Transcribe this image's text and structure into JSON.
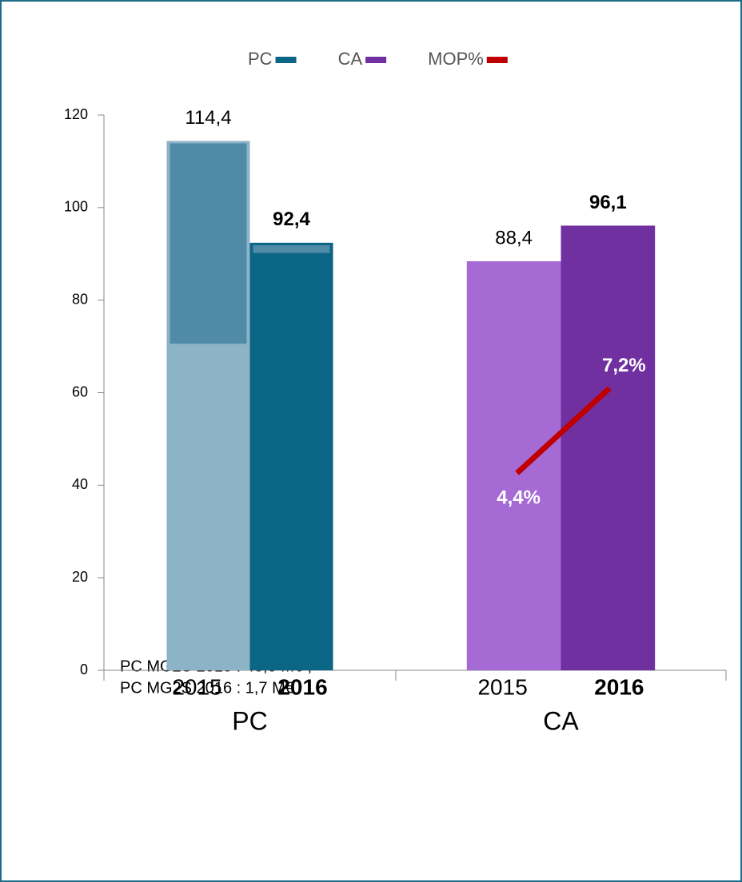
{
  "chart_data": {
    "type": "bar",
    "groups": [
      "PC",
      "CA"
    ],
    "categories": [
      "2015",
      "2016"
    ],
    "series": [
      {
        "name": "PC",
        "color": "#0b6585",
        "colors": [
          "#8cb3c6",
          "#0b6585"
        ],
        "values": [
          114.4,
          92.4
        ],
        "value_labels": [
          "114,4",
          "92,4"
        ],
        "overlay_values": [
          43.3,
          1.7
        ],
        "overlay_color": "#4f8ba6"
      },
      {
        "name": "CA",
        "color": "#7030a0",
        "colors": [
          "#a66ad4",
          "#7030a0"
        ],
        "values": [
          88.4,
          96.1
        ],
        "value_labels": [
          "88,4",
          "96,1"
        ]
      },
      {
        "name": "MOP%",
        "type": "line",
        "axis": "y2",
        "color": "#c00000",
        "values": [
          4.4,
          7.2
        ],
        "value_labels": [
          "4,4%",
          "7,2%"
        ]
      }
    ],
    "ylim": [
      0,
      120
    ],
    "yticks": [
      0,
      20,
      40,
      60,
      80,
      100,
      120
    ],
    "y2lim": [
      -2.1,
      16.2
    ],
    "notes": [
      "PC MG2S 2015 : 43,3 M€ ;",
      "PC MG2S 2016 : 1,7 M€"
    ]
  }
}
